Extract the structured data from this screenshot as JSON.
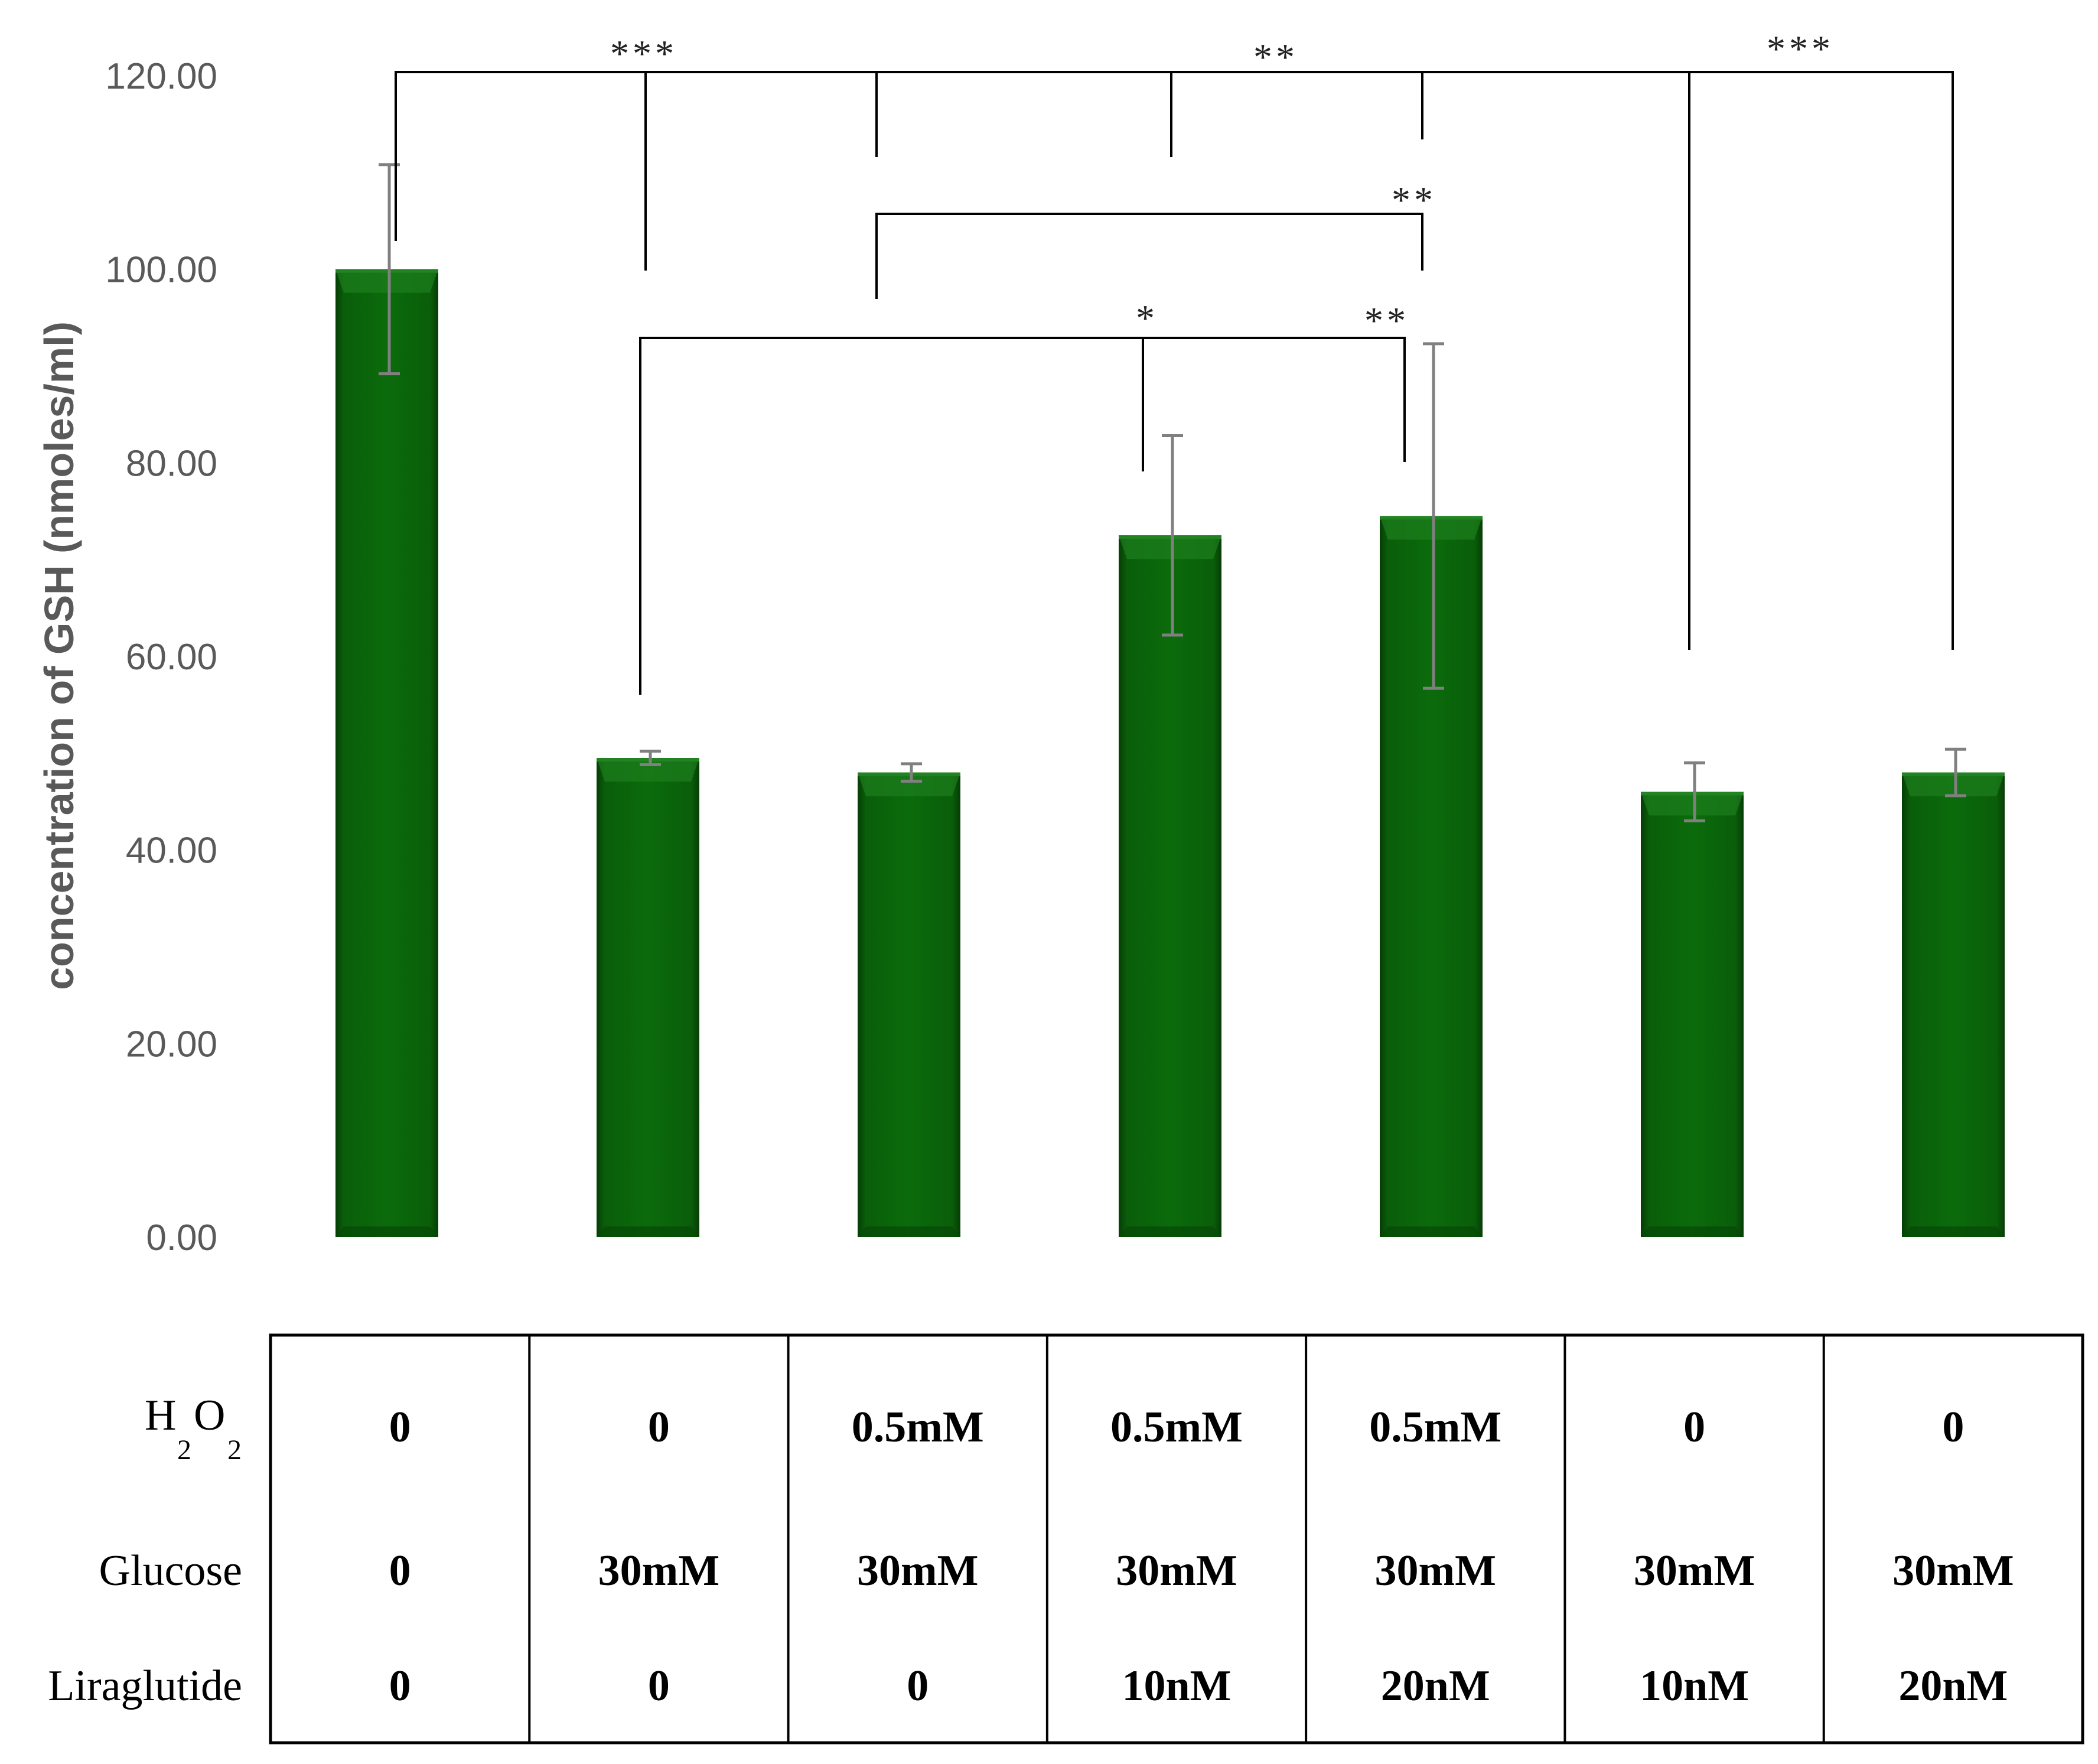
{
  "chart_data": {
    "type": "bar",
    "ylabel": "concentration of GSH (nmoles/ml)",
    "ylim": [
      0,
      120
    ],
    "y_ticks": [
      "0.00",
      "20.00",
      "40.00",
      "60.00",
      "80.00",
      "100.00",
      "120.00"
    ],
    "y_tick_values": [
      0,
      20,
      40,
      60,
      80,
      100,
      120
    ],
    "values": [
      100.0,
      49.5,
      48.0,
      72.5,
      74.5,
      46.0,
      48.0
    ],
    "errors": [
      10.8,
      0.7,
      0.9,
      10.3,
      17.8,
      3.0,
      2.4
    ],
    "bar_color": "#0b6b0b",
    "error_color": "#808080",
    "significance": [
      {
        "label": "***",
        "from": 0,
        "to": 1
      },
      {
        "label": "**",
        "from": 2,
        "to": 4
      },
      {
        "label": "***",
        "from": 5,
        "to": 6
      },
      {
        "label": "**",
        "from": 2,
        "to": 4
      },
      {
        "label": "*",
        "from": 1,
        "to": 3
      },
      {
        "label": "**",
        "from": 1,
        "to": 4
      }
    ]
  },
  "table": {
    "rows": [
      {
        "label_main": "H",
        "label_sub1": "2",
        "label_mid": "O",
        "label_sub2": "2",
        "cells": [
          "0",
          "0",
          "0.5mM",
          "0.5mM",
          "0.5mM",
          "0",
          "0"
        ]
      },
      {
        "label": "Glucose",
        "cells": [
          "0",
          "30mM",
          "30mM",
          "30mM",
          "30mM",
          "30mM",
          "30mM"
        ]
      },
      {
        "label": "Liraglutide",
        "cells": [
          "0",
          "0",
          "0",
          "10nM",
          "20nM",
          "10nM",
          "20nM"
        ]
      }
    ]
  }
}
